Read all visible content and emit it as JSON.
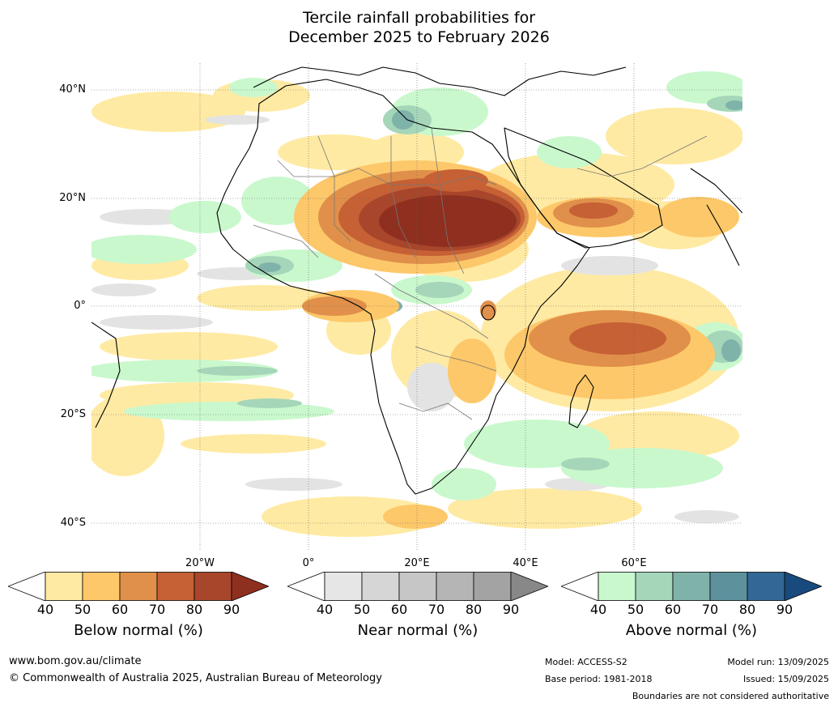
{
  "title": {
    "line1": "Tercile rainfall probabilities for",
    "line2": "December 2025 to February 2026"
  },
  "axes": {
    "lat_labels": [
      "40°N",
      "20°N",
      "0°",
      "20°S",
      "40°S"
    ],
    "lon_labels": [
      "20°W",
      "0°",
      "20°E",
      "40°E",
      "60°E"
    ]
  },
  "legends": [
    {
      "caption": "Below normal (%)",
      "ticks": [
        "40",
        "50",
        "60",
        "70",
        "80",
        "90"
      ],
      "colors": [
        "#ffffff",
        "#ffeaa3",
        "#fdc86a",
        "#e0904a",
        "#c66035",
        "#a8462b",
        "#8e2f1f"
      ]
    },
    {
      "caption": "Near normal (%)",
      "ticks": [
        "40",
        "50",
        "60",
        "70",
        "80",
        "90"
      ],
      "colors": [
        "#ffffff",
        "#e6e6e6",
        "#d6d6d6",
        "#c6c6c6",
        "#b5b5b5",
        "#a3a3a3",
        "#888888"
      ]
    },
    {
      "caption": "Above normal (%)",
      "ticks": [
        "40",
        "50",
        "60",
        "70",
        "80",
        "90"
      ],
      "colors": [
        "#ffffff",
        "#c9f8cd",
        "#a5d6b9",
        "#7fb3aa",
        "#5d929d",
        "#336896",
        "#184a7e"
      ]
    }
  ],
  "footer": {
    "url": "www.bom.gov.au/climate",
    "copyright": "© Commonwealth of Australia 2025, Australian Bureau of Meteorology",
    "model": "Model: ACCESS-S2",
    "base_period": "Base period: 1981-2018",
    "model_run": "Model run: 13/09/2025",
    "issued": "Issued: 15/09/2025",
    "disclaimer": "Boundaries are not considered authoritative"
  }
}
